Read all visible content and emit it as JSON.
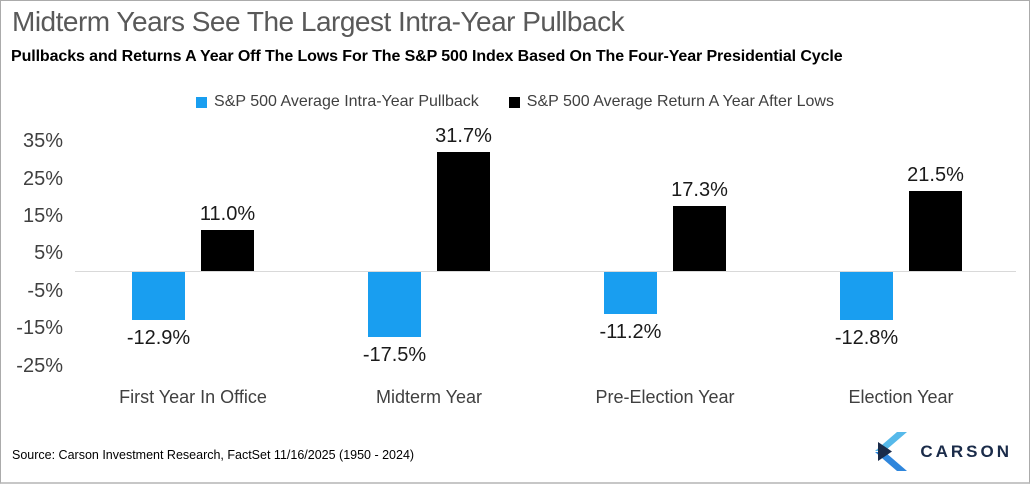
{
  "header": {
    "title": "Midterm Years See The Largest Intra-Year Pullback",
    "subtitle": "Pullbacks and Returns A Year Off The Lows For The S&P 500 Index Based On The Four-Year Presidential Cycle"
  },
  "chart_data": {
    "type": "bar",
    "categories": [
      "First Year In Office",
      "Midterm Year",
      "Pre-Election Year",
      "Election Year"
    ],
    "series": [
      {
        "name": "S&P 500 Average Intra-Year Pullback",
        "color": "#199EF0",
        "values": [
          -12.9,
          -17.5,
          -11.2,
          -12.8
        ]
      },
      {
        "name": "S&P 500 Average Return A Year After Lows",
        "color": "#000000",
        "values": [
          11.0,
          31.7,
          17.3,
          21.5
        ]
      }
    ],
    "y_ticks": [
      35,
      25,
      15,
      5,
      -5,
      -15,
      -25
    ],
    "y_tick_labels": [
      "35%",
      "25%",
      "15%",
      "5%",
      "-5%",
      "-15%",
      "-25%"
    ],
    "ylim": [
      -28,
      38.8
    ],
    "grid": false,
    "legend_position": "top",
    "value_label_suffix": "%"
  },
  "footer": {
    "source": "Source: Carson Investment Research, FactSet 11/16/2025 (1950 - 2024)",
    "logo_text": "CARSON"
  },
  "colors": {
    "title_text": "#595959",
    "axis_text": "#404040",
    "value_label_text": "#1a1a1a",
    "zero_line": "#d9d9d9",
    "pullback_blue": "#199EF0",
    "return_black": "#000000",
    "logo_navy": "#1a2b49",
    "logo_light_blue": "#56b9ea",
    "logo_mid_blue": "#2f86dc"
  }
}
